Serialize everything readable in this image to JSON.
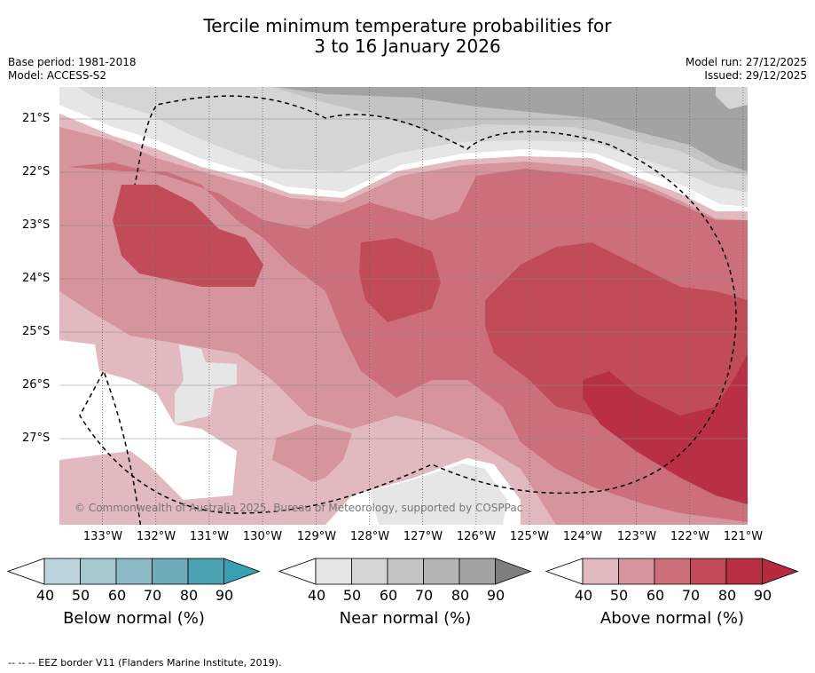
{
  "title_line1": "Tercile minimum temperature probabilities for",
  "title_line2": "3 to 16 January 2026",
  "meta_left": [
    "Base period: 1981-2018",
    "Model: ACCESS-S2"
  ],
  "meta_right": [
    "Model run: 27/12/2025",
    "Issued: 29/12/2025"
  ],
  "lat_labels": [
    "21°S",
    "22°S",
    "23°S",
    "24°S",
    "25°S",
    "26°S",
    "27°S"
  ],
  "lon_labels": [
    "133°W",
    "132°W",
    "131°W",
    "130°W",
    "129°W",
    "128°W",
    "127°W",
    "126°W",
    "125°W",
    "124°W",
    "123°W",
    "122°W",
    "121°W"
  ],
  "copyright": "© Commonwealth of Australia 2025, Bureau of Meteorology, supported by COSPPac",
  "colorbars": [
    {
      "title": "Below normal (%)",
      "ticks": [
        "40",
        "50",
        "60",
        "70",
        "80",
        "90"
      ],
      "colors": [
        "#ffffff",
        "#bdd5dc",
        "#a6c9cf",
        "#8bbac4",
        "#6faab8",
        "#4aa1b2",
        "#37a0b2"
      ]
    },
    {
      "title": "Near normal (%)",
      "ticks": [
        "40",
        "50",
        "60",
        "70",
        "80",
        "90"
      ],
      "colors": [
        "#ffffff",
        "#e6e6e6",
        "#d5d5d5",
        "#c4c4c4",
        "#b4b4b4",
        "#a3a3a3",
        "#7f7f7f"
      ]
    },
    {
      "title": "Above normal (%)",
      "ticks": [
        "40",
        "50",
        "60",
        "70",
        "80",
        "90"
      ],
      "colors": [
        "#ffffff",
        "#e2b9bf",
        "#d6949d",
        "#cc6f7b",
        "#c24b5a",
        "#b82f46",
        "#b52a40"
      ]
    }
  ],
  "footnote": "--  --  -- EEZ border V11 (Flanders Marine Institute, 2019)."
}
